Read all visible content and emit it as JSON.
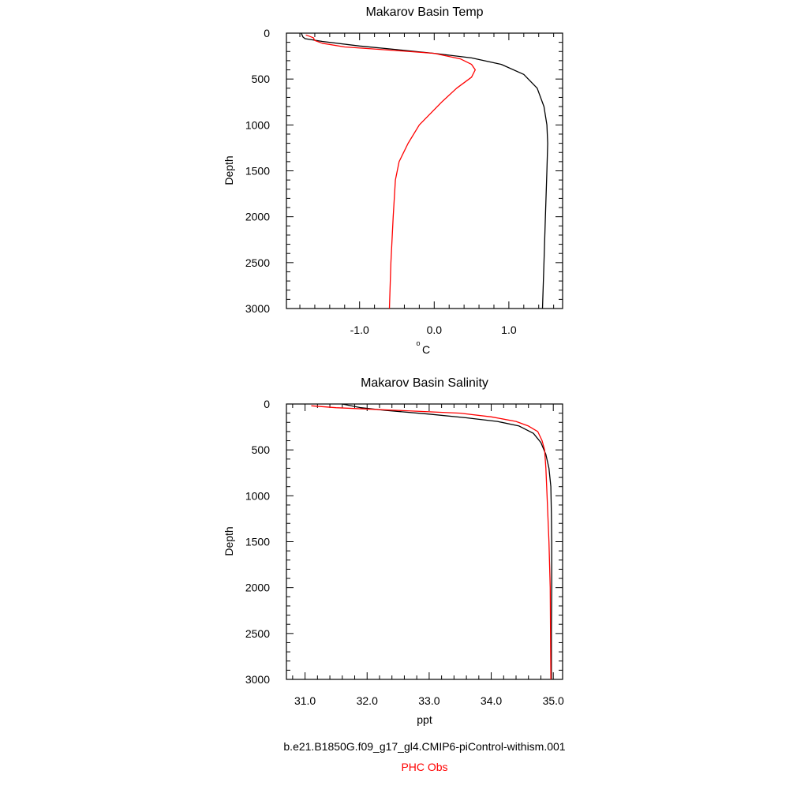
{
  "chart_data": [
    {
      "type": "line",
      "title": "Makarov Basin Temp",
      "xlabel_base": "o",
      "xlabel_main": "C",
      "ylabel": "Depth",
      "xlim": [
        -1.98,
        1.72
      ],
      "ylim": [
        0,
        3000
      ],
      "y_inverted": true,
      "xticks": [
        -1.0,
        0.0,
        1.0
      ],
      "xtick_labels": [
        "-1.0",
        "0.0",
        "1.0"
      ],
      "yticks": [
        0,
        500,
        1000,
        1500,
        2000,
        2500,
        3000
      ],
      "ytick_labels": [
        "0",
        "500",
        "1000",
        "1500",
        "2000",
        "2500",
        "3000"
      ],
      "series": [
        {
          "name": "b.e21.B1850G.f09_g17_gl4.CMIP6-piControl-withism.001",
          "color": "#000000",
          "points": [
            [
              -1.78,
              0
            ],
            [
              -1.76,
              40
            ],
            [
              -1.73,
              60
            ],
            [
              -1.5,
              90
            ],
            [
              -1.0,
              140
            ],
            [
              -0.5,
              180
            ],
            [
              0.0,
              220
            ],
            [
              0.5,
              270
            ],
            [
              0.9,
              340
            ],
            [
              1.2,
              450
            ],
            [
              1.38,
              600
            ],
            [
              1.47,
              800
            ],
            [
              1.51,
              1000
            ],
            [
              1.52,
              1200
            ],
            [
              1.51,
              1500
            ],
            [
              1.49,
              2000
            ],
            [
              1.47,
              2500
            ],
            [
              1.45,
              3000
            ]
          ]
        },
        {
          "name": "PHC Obs",
          "color": "#ff0000",
          "points": [
            [
              -1.72,
              20
            ],
            [
              -1.62,
              50
            ],
            [
              -1.6,
              80
            ],
            [
              -1.5,
              110
            ],
            [
              -1.2,
              150
            ],
            [
              -0.5,
              190
            ],
            [
              0.0,
              220
            ],
            [
              0.35,
              280
            ],
            [
              0.5,
              340
            ],
            [
              0.55,
              400
            ],
            [
              0.5,
              480
            ],
            [
              0.3,
              600
            ],
            [
              0.1,
              750
            ],
            [
              -0.2,
              1000
            ],
            [
              -0.35,
              1200
            ],
            [
              -0.47,
              1400
            ],
            [
              -0.52,
              1600
            ],
            [
              -0.55,
              2000
            ],
            [
              -0.58,
              2500
            ],
            [
              -0.6,
              3000
            ]
          ]
        }
      ]
    },
    {
      "type": "line",
      "title": "Makarov Basin Salinity",
      "xlabel": "ppt",
      "ylabel": "Depth",
      "xlim": [
        30.7,
        35.15
      ],
      "ylim": [
        0,
        3000
      ],
      "y_inverted": true,
      "xticks": [
        31.0,
        32.0,
        33.0,
        34.0,
        35.0
      ],
      "xtick_labels": [
        "31.0",
        "32.0",
        "33.0",
        "34.0",
        "35.0"
      ],
      "yticks": [
        0,
        500,
        1000,
        1500,
        2000,
        2500,
        3000
      ],
      "ytick_labels": [
        "0",
        "500",
        "1000",
        "1500",
        "2000",
        "2500",
        "3000"
      ],
      "series": [
        {
          "name": "b.e21.B1850G.f09_g17_gl4.CMIP6-piControl-withism.001",
          "color": "#000000",
          "points": [
            [
              31.6,
              0
            ],
            [
              31.9,
              40
            ],
            [
              32.3,
              70
            ],
            [
              33.0,
              110
            ],
            [
              33.6,
              150
            ],
            [
              34.1,
              190
            ],
            [
              34.45,
              240
            ],
            [
              34.68,
              320
            ],
            [
              34.8,
              420
            ],
            [
              34.88,
              550
            ],
            [
              34.93,
              700
            ],
            [
              34.96,
              900
            ],
            [
              34.97,
              1200
            ],
            [
              34.975,
              1500
            ],
            [
              34.975,
              2000
            ],
            [
              34.97,
              2500
            ],
            [
              34.97,
              3000
            ]
          ]
        },
        {
          "name": "PHC Obs",
          "color": "#ff0000",
          "points": [
            [
              31.1,
              20
            ],
            [
              31.5,
              40
            ],
            [
              32.5,
              70
            ],
            [
              33.5,
              100
            ],
            [
              34.0,
              140
            ],
            [
              34.4,
              190
            ],
            [
              34.6,
              240
            ],
            [
              34.75,
              300
            ],
            [
              34.82,
              400
            ],
            [
              34.86,
              500
            ],
            [
              34.88,
              700
            ],
            [
              34.9,
              1000
            ],
            [
              34.93,
              1500
            ],
            [
              34.95,
              2000
            ],
            [
              34.955,
              2500
            ],
            [
              34.96,
              3000
            ]
          ]
        }
      ]
    }
  ],
  "legend": {
    "model_label": "b.e21.B1850G.f09_g17_gl4.CMIP6-piControl-withism.001",
    "model_color": "#000000",
    "obs_label": "PHC Obs",
    "obs_color": "#ff0000"
  }
}
